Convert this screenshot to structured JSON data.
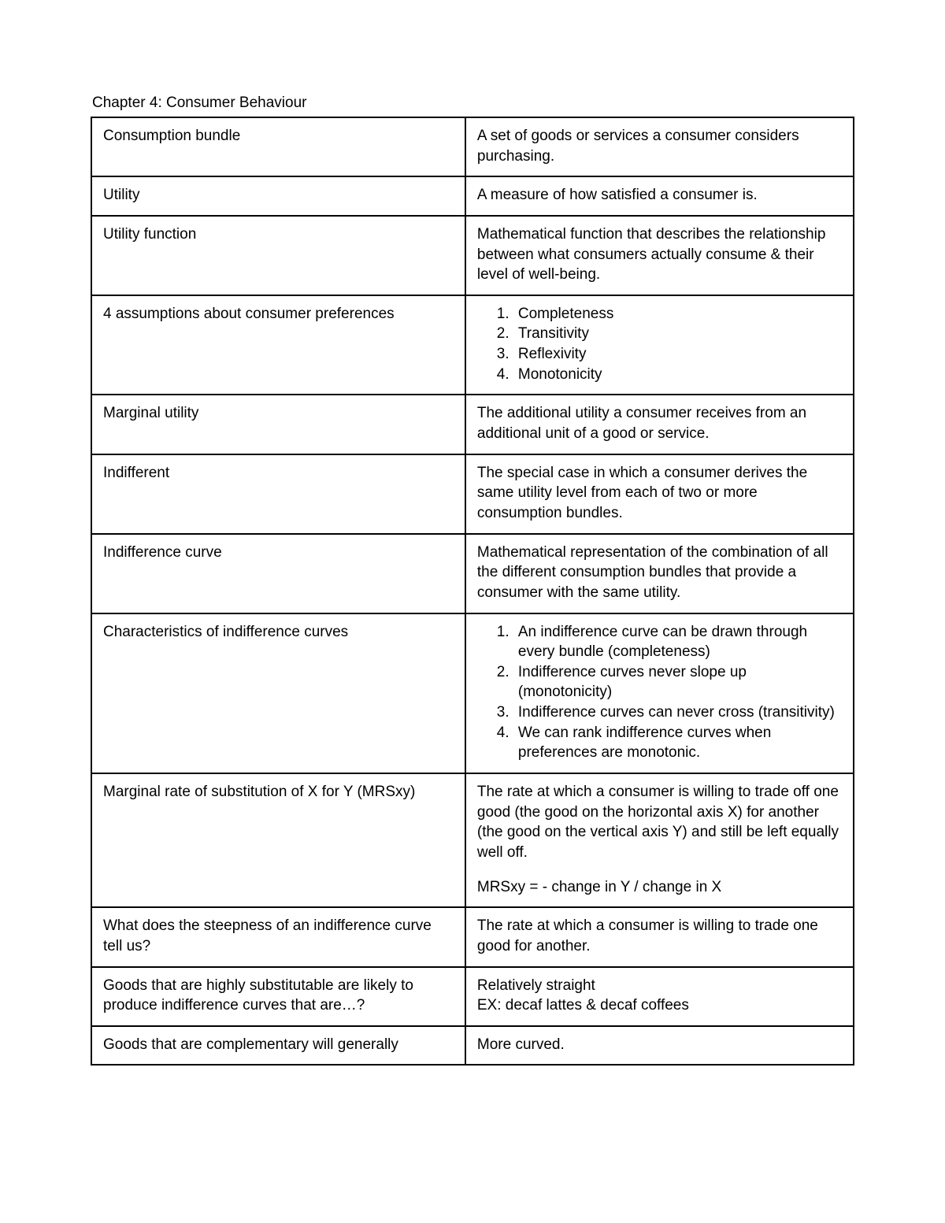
{
  "title": "Chapter 4: Consumer Behaviour",
  "table": {
    "border_color": "#000000",
    "background_color": "#ffffff",
    "font_family": "Arial",
    "base_font_size_pt": 14,
    "rows": [
      {
        "term": "Consumption bundle",
        "def_type": "text",
        "def_text": "A set of goods or services a consumer considers purchasing."
      },
      {
        "term": "Utility",
        "def_type": "text",
        "def_text": "A measure of how satisfied a consumer is."
      },
      {
        "term": "Utility function",
        "def_type": "text",
        "def_text": "Mathematical function that describes the relationship between what consumers actually consume & their level of well-being."
      },
      {
        "term": "4 assumptions about consumer preferences",
        "def_type": "ol",
        "def_items": [
          "Completeness",
          "Transitivity",
          "Reflexivity",
          "Monotonicity"
        ]
      },
      {
        "term": "Marginal utility",
        "def_type": "text",
        "def_text": "The additional utility a consumer receives from an additional unit of a good or service."
      },
      {
        "term": "Indifferent",
        "def_type": "text",
        "def_text": "The special case in which a consumer derives the same utility level from each of two or more consumption bundles."
      },
      {
        "term": "Indifference curve",
        "def_type": "text",
        "def_text": "Mathematical representation of the combination of all the different consumption bundles that provide a consumer with the same utility."
      },
      {
        "term": "Characteristics of indifference curves",
        "def_type": "ol",
        "def_items": [
          "An indifference curve can be drawn through every bundle (completeness)",
          "Indifference curves never slope up (monotonicity)",
          "Indifference curves can never cross (transitivity)",
          "We can rank indifference curves when preferences are monotonic."
        ]
      },
      {
        "term": "Marginal rate of substitution of X for Y (MRSxy)",
        "def_type": "paras",
        "def_paras": [
          "The rate at which a consumer is willing to trade off one good (the good on the horizontal axis X) for another (the good on the vertical axis Y) and still be left equally well off.",
          "MRSxy = - change in Y / change in X"
        ]
      },
      {
        "term": "What does the steepness of an indifference curve tell us?",
        "def_type": "text",
        "def_text": "The rate at which a consumer is willing to trade one good for another."
      },
      {
        "term": "Goods that are highly substitutable are likely to produce indifference curves that are…?",
        "def_type": "paras_tight",
        "def_paras": [
          "Relatively straight",
          "EX: decaf lattes & decaf coffees"
        ]
      },
      {
        "term": "Goods that are complementary will generally",
        "def_type": "text",
        "def_text": "More curved."
      }
    ]
  }
}
